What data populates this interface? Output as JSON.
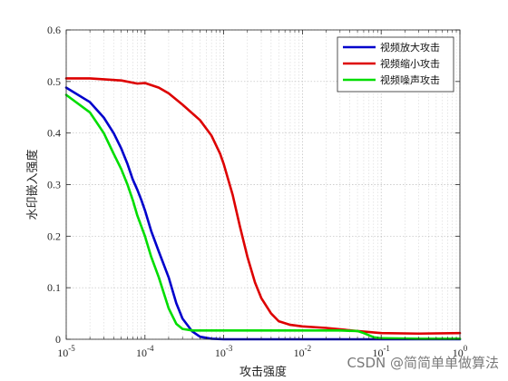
{
  "chart_data": {
    "type": "line",
    "xscale": "log",
    "xlim": [
      1e-05,
      1
    ],
    "ylim": [
      0,
      0.6
    ],
    "xlabel": "攻击强度",
    "ylabel": "水印嵌入强度",
    "xticks": [
      1e-05,
      0.0001,
      0.001,
      0.01,
      0.1,
      1
    ],
    "xtick_labels": [
      {
        "base": "10",
        "exp": "-5"
      },
      {
        "base": "10",
        "exp": "-4"
      },
      {
        "base": "10",
        "exp": "-3"
      },
      {
        "base": "10",
        "exp": "-2"
      },
      {
        "base": "10",
        "exp": "-1"
      },
      {
        "base": "10",
        "exp": "0"
      }
    ],
    "yticks": [
      0,
      0.1,
      0.2,
      0.3,
      0.4,
      0.5,
      0.6
    ],
    "ytick_labels": [
      "0",
      "0.1",
      "0.2",
      "0.3",
      "0.4",
      "0.5",
      "0.6"
    ],
    "grid": true,
    "legend_position": "top-right",
    "series": [
      {
        "name": "视频放大攻击",
        "color": "#0000cc",
        "points": [
          [
            1e-05,
            0.488
          ],
          [
            2e-05,
            0.46
          ],
          [
            3e-05,
            0.43
          ],
          [
            4e-05,
            0.4
          ],
          [
            5e-05,
            0.37
          ],
          [
            6e-05,
            0.34
          ],
          [
            7e-05,
            0.31
          ],
          [
            8e-05,
            0.29
          ],
          [
            9e-05,
            0.27
          ],
          [
            0.0001,
            0.25
          ],
          [
            0.00012,
            0.21
          ],
          [
            0.00015,
            0.17
          ],
          [
            0.0002,
            0.12
          ],
          [
            0.00025,
            0.07
          ],
          [
            0.0003,
            0.04
          ],
          [
            0.0004,
            0.015
          ],
          [
            0.0005,
            0.005
          ],
          [
            0.0007,
            0.001
          ],
          [
            0.001,
            0.0
          ],
          [
            0.01,
            0.0
          ],
          [
            0.1,
            0.0
          ],
          [
            1,
            0.0
          ]
        ]
      },
      {
        "name": "视频缩小攻击",
        "color": "#dd0000",
        "points": [
          [
            1e-05,
            0.506
          ],
          [
            2e-05,
            0.506
          ],
          [
            5e-05,
            0.502
          ],
          [
            8e-05,
            0.496
          ],
          [
            0.0001,
            0.497
          ],
          [
            0.00015,
            0.488
          ],
          [
            0.0002,
            0.477
          ],
          [
            0.0003,
            0.455
          ],
          [
            0.0005,
            0.425
          ],
          [
            0.0007,
            0.395
          ],
          [
            0.0009,
            0.36
          ],
          [
            0.001,
            0.34
          ],
          [
            0.0013,
            0.28
          ],
          [
            0.0016,
            0.22
          ],
          [
            0.002,
            0.16
          ],
          [
            0.0025,
            0.11
          ],
          [
            0.003,
            0.08
          ],
          [
            0.004,
            0.05
          ],
          [
            0.005,
            0.035
          ],
          [
            0.007,
            0.028
          ],
          [
            0.01,
            0.025
          ],
          [
            0.02,
            0.022
          ],
          [
            0.05,
            0.016
          ],
          [
            0.1,
            0.012
          ],
          [
            0.3,
            0.011
          ],
          [
            1,
            0.012
          ]
        ]
      },
      {
        "name": "视频噪声攻击",
        "color": "#00dd00",
        "points": [
          [
            1e-05,
            0.474
          ],
          [
            2e-05,
            0.44
          ],
          [
            3e-05,
            0.4
          ],
          [
            4e-05,
            0.36
          ],
          [
            5e-05,
            0.33
          ],
          [
            6e-05,
            0.3
          ],
          [
            7e-05,
            0.27
          ],
          [
            8e-05,
            0.24
          ],
          [
            0.0001,
            0.2
          ],
          [
            0.00012,
            0.16
          ],
          [
            0.00015,
            0.12
          ],
          [
            0.0002,
            0.06
          ],
          [
            0.00025,
            0.03
          ],
          [
            0.0003,
            0.02
          ],
          [
            0.0004,
            0.017
          ],
          [
            0.001,
            0.017
          ],
          [
            0.01,
            0.017
          ],
          [
            0.03,
            0.017
          ],
          [
            0.05,
            0.016
          ],
          [
            0.06,
            0.012
          ],
          [
            0.08,
            0.004
          ],
          [
            0.1,
            0.002
          ],
          [
            0.3,
            0.001
          ],
          [
            1,
            0.001
          ]
        ]
      }
    ]
  },
  "watermark": {
    "text": "CSDN @简简单单做算法"
  }
}
